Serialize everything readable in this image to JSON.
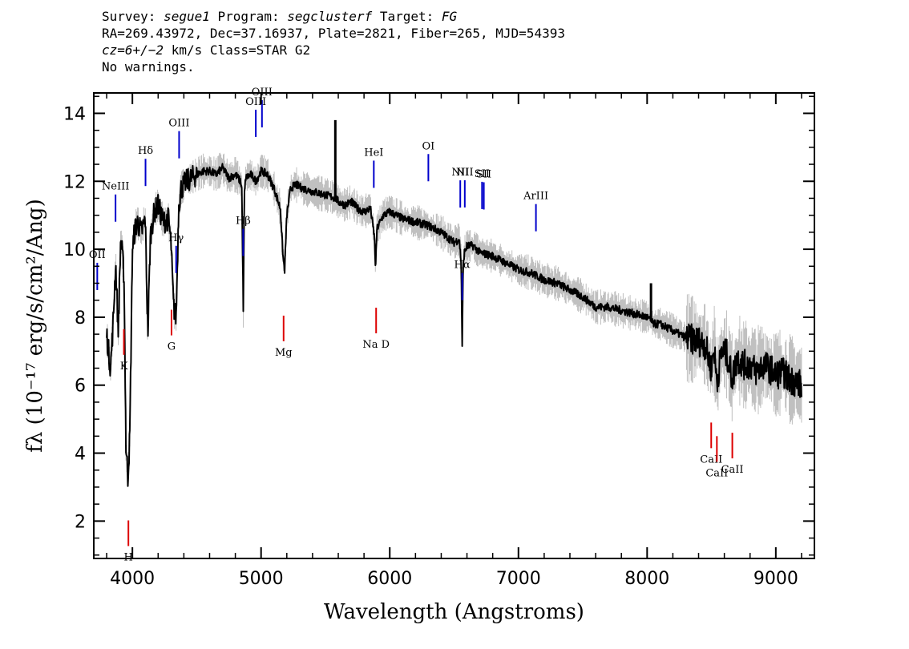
{
  "header": {
    "survey_label": "Survey:",
    "survey": "segue1",
    "program_label": "Program:",
    "program": "segclusterf",
    "target_label": "Target:",
    "target": "FG",
    "line2": "RA=269.43972, Dec=37.16937, Plate=2821, Fiber=265, MJD=54393",
    "cz_prefix": "cz=6+/−2",
    "cz_suffix": " km/s Class=STAR G2",
    "line4": "No warnings."
  },
  "chart_data": {
    "type": "line",
    "xlabel": "Wavelength (Angstroms)",
    "ylabel": "fλ (10⁻¹⁷ erg/s/cm²/Ang)",
    "xlim": [
      3700,
      9300
    ],
    "ylim": [
      0.9,
      14.6
    ],
    "x_ticks": [
      4000,
      5000,
      6000,
      7000,
      8000,
      9000
    ],
    "y_ticks": [
      2,
      4,
      6,
      8,
      10,
      12,
      14
    ],
    "grid": false,
    "colors": {
      "flux": "#000000",
      "error": "#c0c0c0",
      "emission": "#0000cc",
      "absorption": "#dd0000",
      "sky": "#000000"
    },
    "series": [
      {
        "name": "flux",
        "x": [
          3800,
          3830,
          3850,
          3870,
          3890,
          3910,
          3935,
          3950,
          3965,
          3980,
          4000,
          4020,
          4040,
          4070,
          4100,
          4120,
          4140,
          4170,
          4200,
          4240,
          4280,
          4300,
          4320,
          4340,
          4360,
          4380,
          4420,
          4460,
          4500,
          4550,
          4600,
          4650,
          4700,
          4750,
          4800,
          4840,
          4850,
          4862,
          4870,
          4880,
          4920,
          4960,
          5000,
          5050,
          5100,
          5150,
          5170,
          5183,
          5200,
          5230,
          5270,
          5320,
          5400,
          5500,
          5580,
          5600,
          5650,
          5700,
          5750,
          5800,
          5850,
          5880,
          5890,
          5900,
          5950,
          6000,
          6100,
          6200,
          6300,
          6400,
          6500,
          6540,
          6555,
          6563,
          6570,
          6580,
          6600,
          6650,
          6700,
          6800,
          6900,
          7000,
          7100,
          7200,
          7300,
          7400,
          7500,
          7600,
          7700,
          7800,
          7900,
          8000,
          8050,
          8100,
          8200,
          8300,
          8400,
          8450,
          8498,
          8520,
          8542,
          8580,
          8620,
          8662,
          8700,
          8750,
          8800,
          8850,
          8900,
          8950,
          9000,
          9050,
          9100,
          9150,
          9200
        ],
        "y": [
          7.5,
          6.5,
          7.8,
          9.6,
          7.6,
          10.4,
          9.2,
          4.2,
          3.3,
          4.5,
          10.0,
          10.6,
          10.8,
          10.5,
          10.9,
          7.5,
          10.4,
          11.1,
          11.3,
          10.8,
          10.9,
          10.2,
          8.3,
          8.0,
          11.3,
          11.8,
          12.0,
          12.1,
          12.2,
          12.3,
          12.3,
          12.2,
          12.4,
          12.1,
          12.2,
          12.0,
          11.8,
          8.2,
          11.6,
          12.1,
          12.2,
          12.0,
          12.3,
          12.2,
          11.8,
          11.2,
          9.8,
          9.4,
          11.0,
          11.8,
          11.9,
          11.8,
          11.7,
          11.6,
          11.5,
          11.4,
          11.3,
          11.4,
          11.2,
          11.1,
          11.2,
          10.4,
          9.4,
          10.6,
          11.0,
          11.1,
          10.9,
          10.8,
          10.7,
          10.5,
          10.2,
          10.3,
          9.6,
          7.2,
          9.5,
          9.9,
          10.1,
          10.1,
          9.9,
          9.8,
          9.6,
          9.4,
          9.3,
          9.1,
          9.0,
          8.8,
          8.6,
          8.3,
          8.3,
          8.2,
          8.1,
          8.0,
          7.8,
          7.8,
          7.6,
          7.4,
          7.3,
          7.2,
          6.5,
          7.1,
          6.1,
          7.0,
          6.9,
          6.2,
          6.8,
          6.6,
          6.6,
          6.4,
          6.6,
          6.5,
          6.3,
          6.4,
          6.2,
          6.1,
          6.0
        ]
      }
    ],
    "emission_lines": [
      {
        "name": "OII",
        "wavelength": 3727
      },
      {
        "name": "NeIII",
        "wavelength": 3869
      },
      {
        "name": "Hδ",
        "wavelength": 4102
      },
      {
        "name": "Hγ",
        "wavelength": 4340
      },
      {
        "name": "OIII",
        "wavelength": 4363
      },
      {
        "name": "Hβ",
        "wavelength": 4861
      },
      {
        "name": "OIII",
        "wavelength": 4959
      },
      {
        "name": "OIII",
        "wavelength": 5007
      },
      {
        "name": "HeI",
        "wavelength": 5876
      },
      {
        "name": "OI",
        "wavelength": 6300
      },
      {
        "name": "NII",
        "wavelength": 6548
      },
      {
        "name": "Hα",
        "wavelength": 6563
      },
      {
        "name": "NII",
        "wavelength": 6583
      },
      {
        "name": "SII",
        "wavelength": 6717
      },
      {
        "name": "SII",
        "wavelength": 6731
      },
      {
        "name": "ArIII",
        "wavelength": 7136
      }
    ],
    "absorption_lines": [
      {
        "name": "K",
        "wavelength": 3934
      },
      {
        "name": "H",
        "wavelength": 3969
      },
      {
        "name": "G",
        "wavelength": 4304
      },
      {
        "name": "Mg",
        "wavelength": 5175
      },
      {
        "name": "Na D",
        "wavelength": 5894
      },
      {
        "name": "CaII",
        "wavelength": 8498
      },
      {
        "name": "CaII",
        "wavelength": 8542
      },
      {
        "name": "CaII",
        "wavelength": 8662
      }
    ],
    "sky_spikes": [
      {
        "wavelength": 5577,
        "value": 13.8
      },
      {
        "wavelength": 8030,
        "value": 9.0
      }
    ]
  }
}
